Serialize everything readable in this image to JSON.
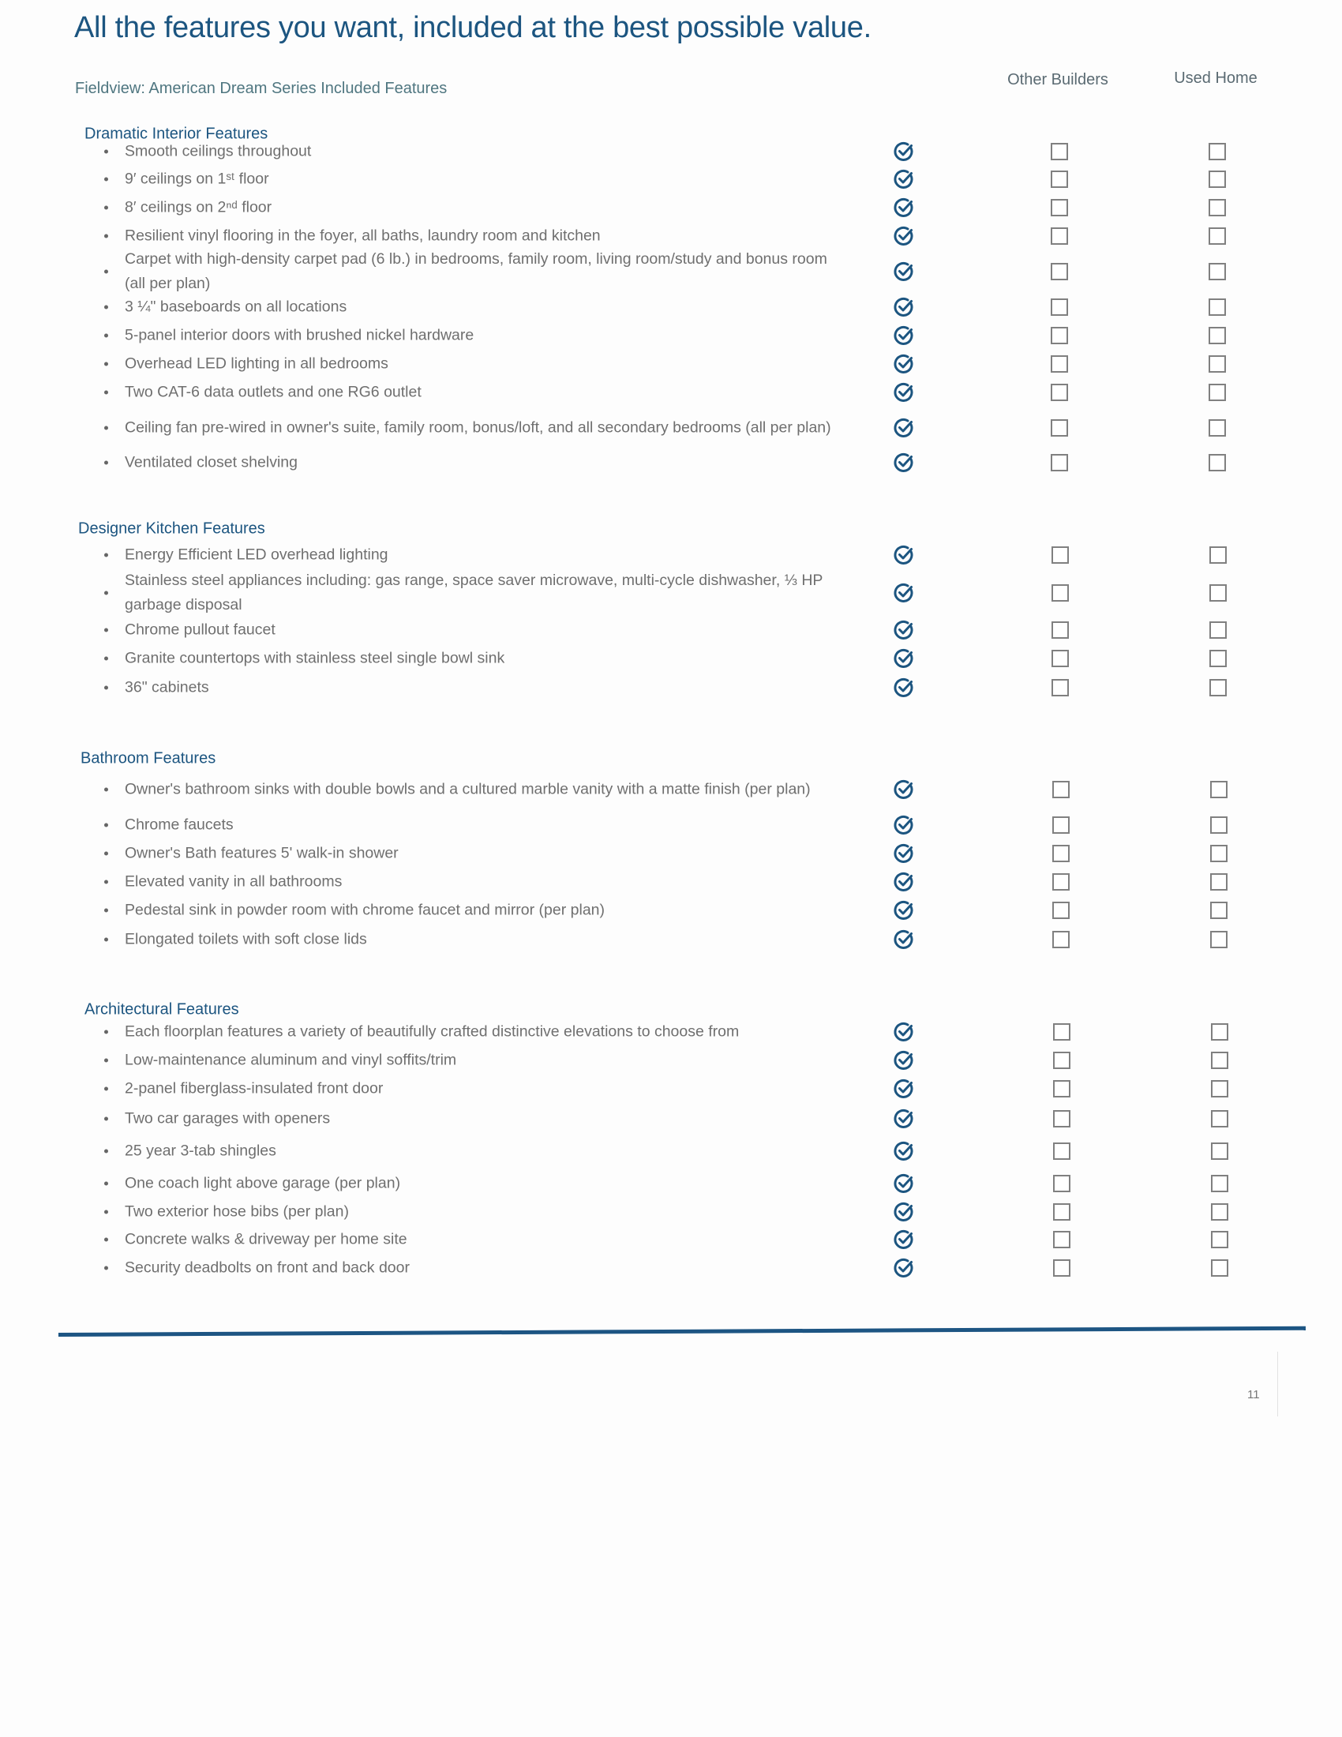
{
  "header": {
    "title": "All the features you want, included at the best possible value.",
    "subtitle": "Fieldview: American Dream Series Included Features",
    "columns": [
      "Other Builders",
      "Used Home"
    ]
  },
  "colors": {
    "accent": "#1c5580",
    "text": "#6f6f6f",
    "checkbox": "#808080"
  },
  "sections": [
    {
      "title": "Dramatic Interior Features",
      "items": [
        "Smooth ceilings throughout",
        "9′ ceilings on 1ˢᵗ floor",
        "8′ ceilings on 2ⁿᵈ floor",
        "Resilient vinyl flooring in the foyer, all baths, laundry room and kitchen",
        "Carpet with high-density carpet pad (6 lb.) in bedrooms, family room, living room/study and bonus room (all per plan)",
        "3 ¼\" baseboards on all locations",
        "5-panel interior doors with brushed nickel hardware",
        "Overhead LED lighting in all bedrooms",
        "Two CAT-6 data outlets and one RG6 outlet",
        "Ceiling fan pre-wired in owner's suite, family room, bonus/loft, and all secondary bedrooms (all per plan)",
        "Ventilated closet shelving"
      ]
    },
    {
      "title": "Designer Kitchen Features",
      "items": [
        "Energy Efficient LED overhead lighting",
        "Stainless steel appliances including: gas range, space saver microwave, multi-cycle dishwasher, ⅓ HP garbage disposal",
        "Chrome pullout faucet",
        "Granite countertops with stainless steel single bowl sink",
        "36\" cabinets"
      ]
    },
    {
      "title": "Bathroom Features",
      "items": [
        "Owner's bathroom sinks with double bowls and a cultured marble vanity with a matte finish (per plan)",
        "Chrome faucets",
        "Owner's Bath features 5' walk-in shower",
        "Elevated vanity in all bathrooms",
        "Pedestal sink in powder room with chrome faucet and mirror (per plan)",
        "Elongated toilets with soft close lids"
      ]
    },
    {
      "title": "Architectural Features",
      "items": [
        "Each floorplan features a variety of beautifully crafted distinctive elevations to choose from",
        "Low-maintenance aluminum and vinyl soffits/trim",
        "2-panel fiberglass-insulated front door",
        "Two car garages with openers",
        "25 year 3-tab shingles",
        "One coach light above garage (per plan)",
        "Two exterior hose bibs (per plan)",
        "Concrete walks & driveway per home site",
        "Security deadbolts on front and back door"
      ]
    }
  ],
  "included_icon": "check-circle-icon",
  "comparison_icon": "empty-checkbox-icon",
  "footer": {
    "page_number": "11"
  }
}
